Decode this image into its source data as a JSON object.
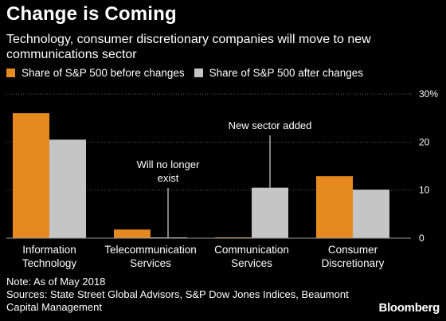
{
  "title": "Change is Coming",
  "subtitle": "Technology, consumer discretionary companies will move to new communications sector",
  "colors": {
    "before": "#e58a1f",
    "after": "#c5c5c5",
    "background": "#000000",
    "text": "#ffffff"
  },
  "chart_data": {
    "type": "bar",
    "categories": [
      [
        "Information",
        "Technology"
      ],
      [
        "Telecommunication",
        "Services"
      ],
      [
        "Communication",
        "Services"
      ],
      [
        "Consumer",
        "Discretionary"
      ]
    ],
    "series": [
      {
        "name": "Share of S&P 500 before changes",
        "values": [
          26,
          1.8,
          0,
          12.9
        ]
      },
      {
        "name": "Share of S&P 500 after changes",
        "values": [
          20.5,
          0,
          10.5,
          10.1
        ]
      }
    ],
    "ylim": [
      0,
      30
    ],
    "yticks": [
      0,
      10,
      20,
      30
    ],
    "ytick_labels": [
      "0",
      "10",
      "20",
      "30%"
    ],
    "y_axis_position": "right",
    "legend_position": "top-left",
    "annotations": [
      {
        "lines": [
          "Will no longer",
          "exist"
        ],
        "category": 1,
        "series": 1
      },
      {
        "lines": [
          "New sector added"
        ],
        "category": 2,
        "series": 1
      }
    ]
  },
  "footer": {
    "note": "Note: As of May 2018",
    "sources": "Sources: State Street Global Advisors, S&P Dow Jones Indices, Beaumont Capital Management"
  },
  "brand": "Bloomberg"
}
